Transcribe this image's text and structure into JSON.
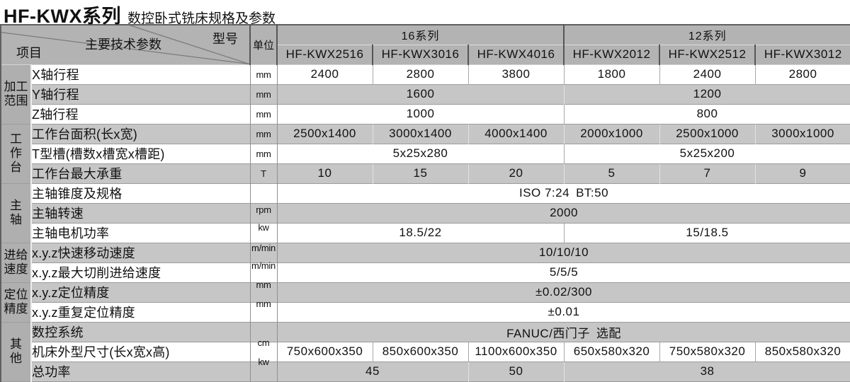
{
  "page": {
    "title": "HF-KWX系列",
    "subtitle": "数控卧式铣床规格及参数"
  },
  "colors": {
    "header_bg": "#b3b3b3",
    "gray_row_bg": "#c6c6c6",
    "category_bg": "#afafaf",
    "dark_border": "#565656",
    "light_border": "#a8a8a8",
    "text": "#111111"
  },
  "table": {
    "header": {
      "params_label": "主要技术参数",
      "model_label": "型号",
      "item_label": "项目",
      "unit_label": "单位",
      "series16": "16系列",
      "series12": "12系列"
    },
    "models": [
      "HF-KWX2516",
      "HF-KWX3016",
      "HF-KWX4016",
      "HF-KWX2012",
      "HF-KWX2512",
      "HF-KWX3012"
    ],
    "groups": [
      {
        "category_lines": [
          "加工",
          "范围"
        ],
        "rows": [
          {
            "label": "X轴行程",
            "unit": "mm",
            "cells": [
              {
                "text": "2400",
                "span": 1
              },
              {
                "text": "2800",
                "span": 1
              },
              {
                "text": "3800",
                "span": 1
              },
              {
                "text": "1800",
                "span": 1
              },
              {
                "text": "2400",
                "span": 1
              },
              {
                "text": "2800",
                "span": 1
              }
            ]
          },
          {
            "label": "Y轴行程",
            "unit": "mm",
            "cells": [
              {
                "text": "1600",
                "span": 3
              },
              {
                "text": "1200",
                "span": 3
              }
            ]
          },
          {
            "label": "Z轴行程",
            "unit": "mm",
            "cells": [
              {
                "text": "1000",
                "span": 3
              },
              {
                "text": "800",
                "span": 3
              }
            ]
          }
        ]
      },
      {
        "category_lines": [
          "工",
          "作",
          "台"
        ],
        "rows": [
          {
            "label": "工作台面积(长x宽)",
            "unit": "mm",
            "cells": [
              {
                "text": "2500x1400",
                "span": 1
              },
              {
                "text": "3000x1400",
                "span": 1
              },
              {
                "text": "4000x1400",
                "span": 1
              },
              {
                "text": "2000x1000",
                "span": 1
              },
              {
                "text": "2500x1000",
                "span": 1
              },
              {
                "text": "3000x1000",
                "span": 1
              }
            ]
          },
          {
            "label": "T型槽(槽数x槽宽x槽距)",
            "unit": "mm",
            "cells": [
              {
                "text": "5x25x280",
                "span": 3
              },
              {
                "text": "5x25x200",
                "span": 3
              }
            ]
          },
          {
            "label": "工作台最大承重",
            "unit": "T",
            "cells": [
              {
                "text": "10",
                "span": 1
              },
              {
                "text": "15",
                "span": 1
              },
              {
                "text": "20",
                "span": 1
              },
              {
                "text": "5",
                "span": 1
              },
              {
                "text": "7",
                "span": 1
              },
              {
                "text": "9",
                "span": 1
              }
            ]
          }
        ]
      },
      {
        "category_lines": [
          "主",
          "轴"
        ],
        "rows": [
          {
            "label": "主轴锥度及规格",
            "unit": "",
            "cells": [
              {
                "text": "ISO 7:24 BT:50",
                "span": 6
              }
            ]
          },
          {
            "label": "主轴转速",
            "unit": "rpm",
            "cells": [
              {
                "text": "2000",
                "span": 6
              }
            ]
          },
          {
            "label": "主轴电机功率",
            "unit": "kw",
            "cells": [
              {
                "text": "18.5/22",
                "span": 3
              },
              {
                "text": "15/18.5",
                "span": 3
              }
            ]
          }
        ]
      },
      {
        "category_lines": [
          "进给",
          "速度"
        ],
        "rows": [
          {
            "label": "x.y.z快速移动速度",
            "unit": "m/min",
            "cells": [
              {
                "text": "10/10/10",
                "span": 6
              }
            ]
          },
          {
            "label": "x.y.z最大切削进给速度",
            "unit": "m/min",
            "cells": [
              {
                "text": "5/5/5",
                "span": 6
              }
            ]
          }
        ]
      },
      {
        "category_lines": [
          "定位",
          "精度"
        ],
        "rows": [
          {
            "label": "x.y.z定位精度",
            "unit": "mm",
            "cells": [
              {
                "text": "±0.02/300",
                "span": 6
              }
            ]
          },
          {
            "label": "x.y.z重复定位精度",
            "unit": "mm",
            "cells": [
              {
                "text": "±0.01",
                "span": 6
              }
            ]
          }
        ]
      },
      {
        "category_lines": [
          "其",
          "他"
        ],
        "rows": [
          {
            "label": "数控系统",
            "unit": "",
            "cells": [
              {
                "text": "FANUC/西门子 选配",
                "span": 6
              }
            ]
          },
          {
            "label": "机床外型尺寸(长x宽x高)",
            "unit": "cm",
            "cells": [
              {
                "text": "750x600x350",
                "span": 1
              },
              {
                "text": "850x600x350",
                "span": 1
              },
              {
                "text": "1100x600x350",
                "span": 1
              },
              {
                "text": "650x580x320",
                "span": 1
              },
              {
                "text": "750x580x320",
                "span": 1
              },
              {
                "text": "850x580x320",
                "span": 1
              }
            ]
          },
          {
            "label": "总功率",
            "unit": "kw",
            "cells": [
              {
                "text": "45",
                "span": 2
              },
              {
                "text": "50",
                "span": 1
              },
              {
                "text": "38",
                "span": 3
              }
            ]
          }
        ]
      }
    ]
  }
}
